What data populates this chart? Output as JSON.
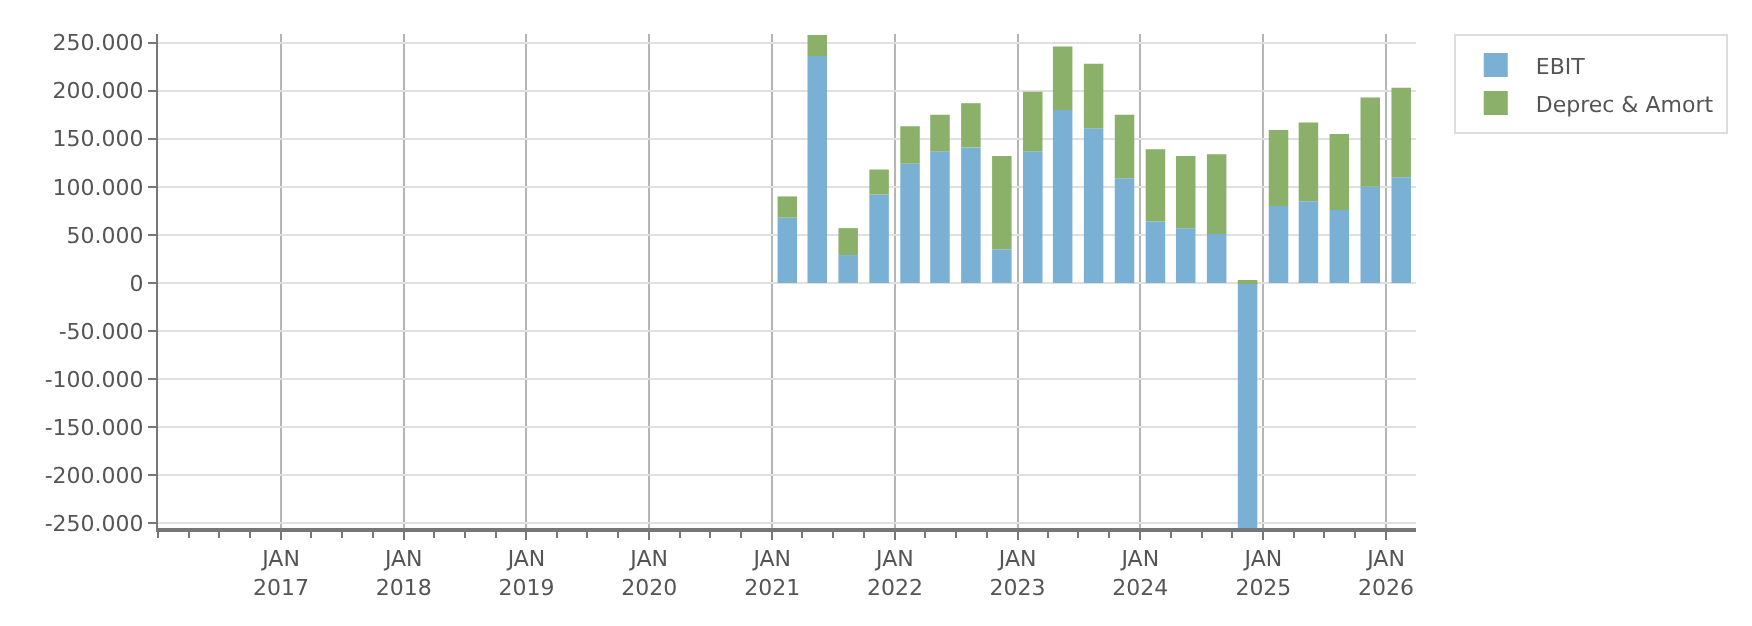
{
  "chart_data": {
    "type": "bar",
    "stacked": true,
    "x": [
      "2021-02-15",
      "2021-05-15",
      "2021-08-15",
      "2021-11-15",
      "2022-02-15",
      "2022-05-15",
      "2022-08-15",
      "2022-11-15",
      "2023-02-15",
      "2023-05-15",
      "2023-08-15",
      "2023-11-15",
      "2024-02-15",
      "2024-05-15",
      "2024-08-15",
      "2024-11-15",
      "2025-02-15",
      "2025-05-15",
      "2025-08-15",
      "2025-11-15",
      "2026-02-15"
    ],
    "series": [
      {
        "name": "EBIT",
        "color": "#7ab0d4",
        "values": [
          68000,
          236000,
          29000,
          92000,
          124000,
          137000,
          141000,
          35000,
          137000,
          180000,
          161000,
          109000,
          64000,
          57000,
          51000,
          -255000,
          80000,
          85000,
          76000,
          100000,
          110000
        ]
      },
      {
        "name": "Deprec & Amort",
        "color": "#8ab069",
        "values": [
          22000,
          22000,
          28000,
          26000,
          39000,
          38000,
          46000,
          97000,
          62000,
          66000,
          67000,
          66000,
          75000,
          75000,
          83000,
          2000,
          79000,
          82000,
          79000,
          93000,
          93000
        ]
      }
    ],
    "xlim": [
      "2016-01-01",
      "2026-03-31"
    ],
    "xticks": [
      {
        "value": "2017-01-01",
        "label": "JAN\n2017"
      },
      {
        "value": "2018-01-01",
        "label": "JAN\n2018"
      },
      {
        "value": "2019-01-01",
        "label": "JAN\n2019"
      },
      {
        "value": "2020-01-01",
        "label": "JAN\n2020"
      },
      {
        "value": "2021-01-01",
        "label": "JAN\n2021"
      },
      {
        "value": "2022-01-01",
        "label": "JAN\n2022"
      },
      {
        "value": "2023-01-01",
        "label": "JAN\n2023"
      },
      {
        "value": "2024-01-01",
        "label": "JAN\n2024"
      },
      {
        "value": "2025-01-01",
        "label": "JAN\n2025"
      },
      {
        "value": "2026-01-01",
        "label": "JAN\n2026"
      }
    ],
    "ylim": [
      -255000,
      259000
    ],
    "yticks": [
      {
        "value": -250000,
        "label": "-250.000"
      },
      {
        "value": -200000,
        "label": "-200.000"
      },
      {
        "value": -150000,
        "label": "-150.000"
      },
      {
        "value": -100000,
        "label": "-100.000"
      },
      {
        "value": -50000,
        "label": "-50.000"
      },
      0,
      {
        "value": 50000,
        "label": "50.000"
      },
      {
        "value": 100000,
        "label": "100.000"
      },
      {
        "value": 150000,
        "label": "150.000"
      },
      {
        "value": 200000,
        "label": "200.000"
      },
      {
        "value": 250000,
        "label": "250.000"
      }
    ],
    "grid": true,
    "legend": "top right"
  }
}
